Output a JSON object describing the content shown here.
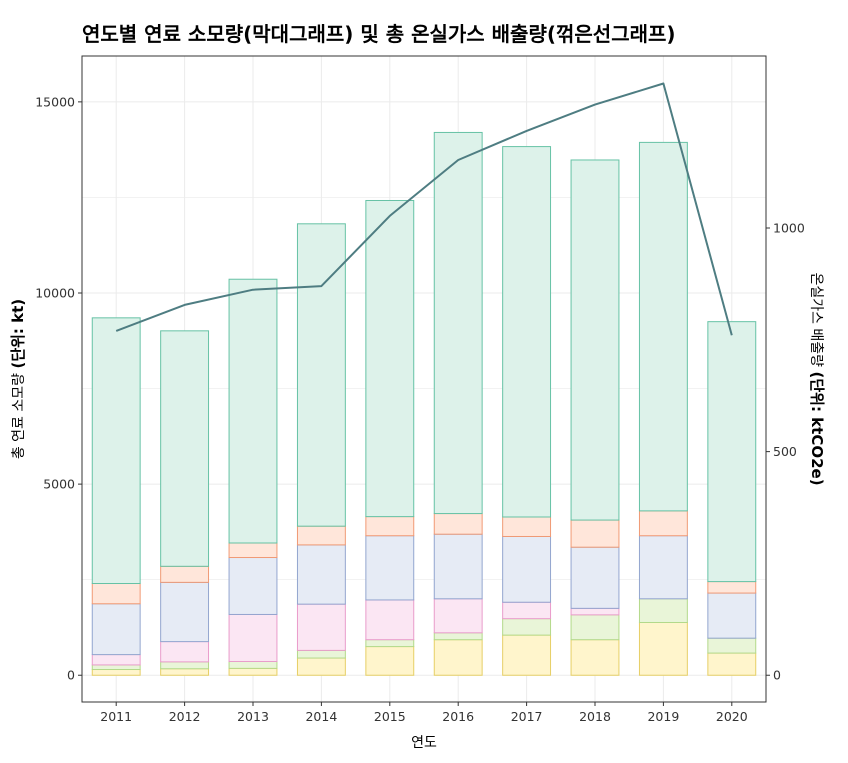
{
  "chart_data": {
    "type": "bar",
    "title": "연도별 연료 소모량(막대그래프) 및 총 온실가스 배출량(꺾은선그래프)",
    "xlabel": "연도",
    "ylabel_left": {
      "text": "총 연료 소모량 ",
      "bold": "(단위: kt)"
    },
    "ylabel_right": {
      "text": "온실가스 배출량 ",
      "bold": "(단위: ktCO2e)"
    },
    "categories": [
      "2011",
      "2012",
      "2013",
      "2014",
      "2015",
      "2016",
      "2017",
      "2018",
      "2019",
      "2020"
    ],
    "left_ylim": [
      -700,
      16200
    ],
    "left_ticks": [
      0,
      5000,
      10000,
      15000
    ],
    "right_ticks": [
      0,
      500,
      1000
    ],
    "stacked_series": [
      {
        "values": [
          150,
          170,
          180,
          450,
          750,
          930,
          1050,
          930,
          1380,
          580
        ],
        "fill": "#fff5cc",
        "stroke": "#e6cf66"
      },
      {
        "values": [
          120,
          180,
          180,
          200,
          180,
          180,
          430,
          650,
          620,
          390
        ],
        "fill": "#e9f5d8",
        "stroke": "#b3d98a"
      },
      {
        "values": [
          270,
          530,
          1230,
          1210,
          1040,
          890,
          430,
          170,
          0,
          0
        ],
        "fill": "#fbe6f3",
        "stroke": "#e99ccb"
      },
      {
        "values": [
          1330,
          1550,
          1490,
          1550,
          1680,
          1690,
          1720,
          1600,
          1650,
          1180
        ],
        "fill": "#e6ebf5",
        "stroke": "#93a5cf"
      },
      {
        "values": [
          530,
          420,
          380,
          490,
          500,
          540,
          510,
          710,
          650,
          300
        ],
        "fill": "#ffe6da",
        "stroke": "#f09a75"
      },
      {
        "values": [
          6950,
          6160,
          6900,
          7910,
          8270,
          9970,
          9690,
          9420,
          9640,
          6800
        ],
        "fill": "#ddf2ea",
        "stroke": "#66c2a5"
      }
    ],
    "line_series": {
      "values": [
        770,
        828,
        862,
        870,
        1027,
        1152,
        1217,
        1276,
        1323,
        760
      ],
      "color": "#4e7d82"
    }
  }
}
